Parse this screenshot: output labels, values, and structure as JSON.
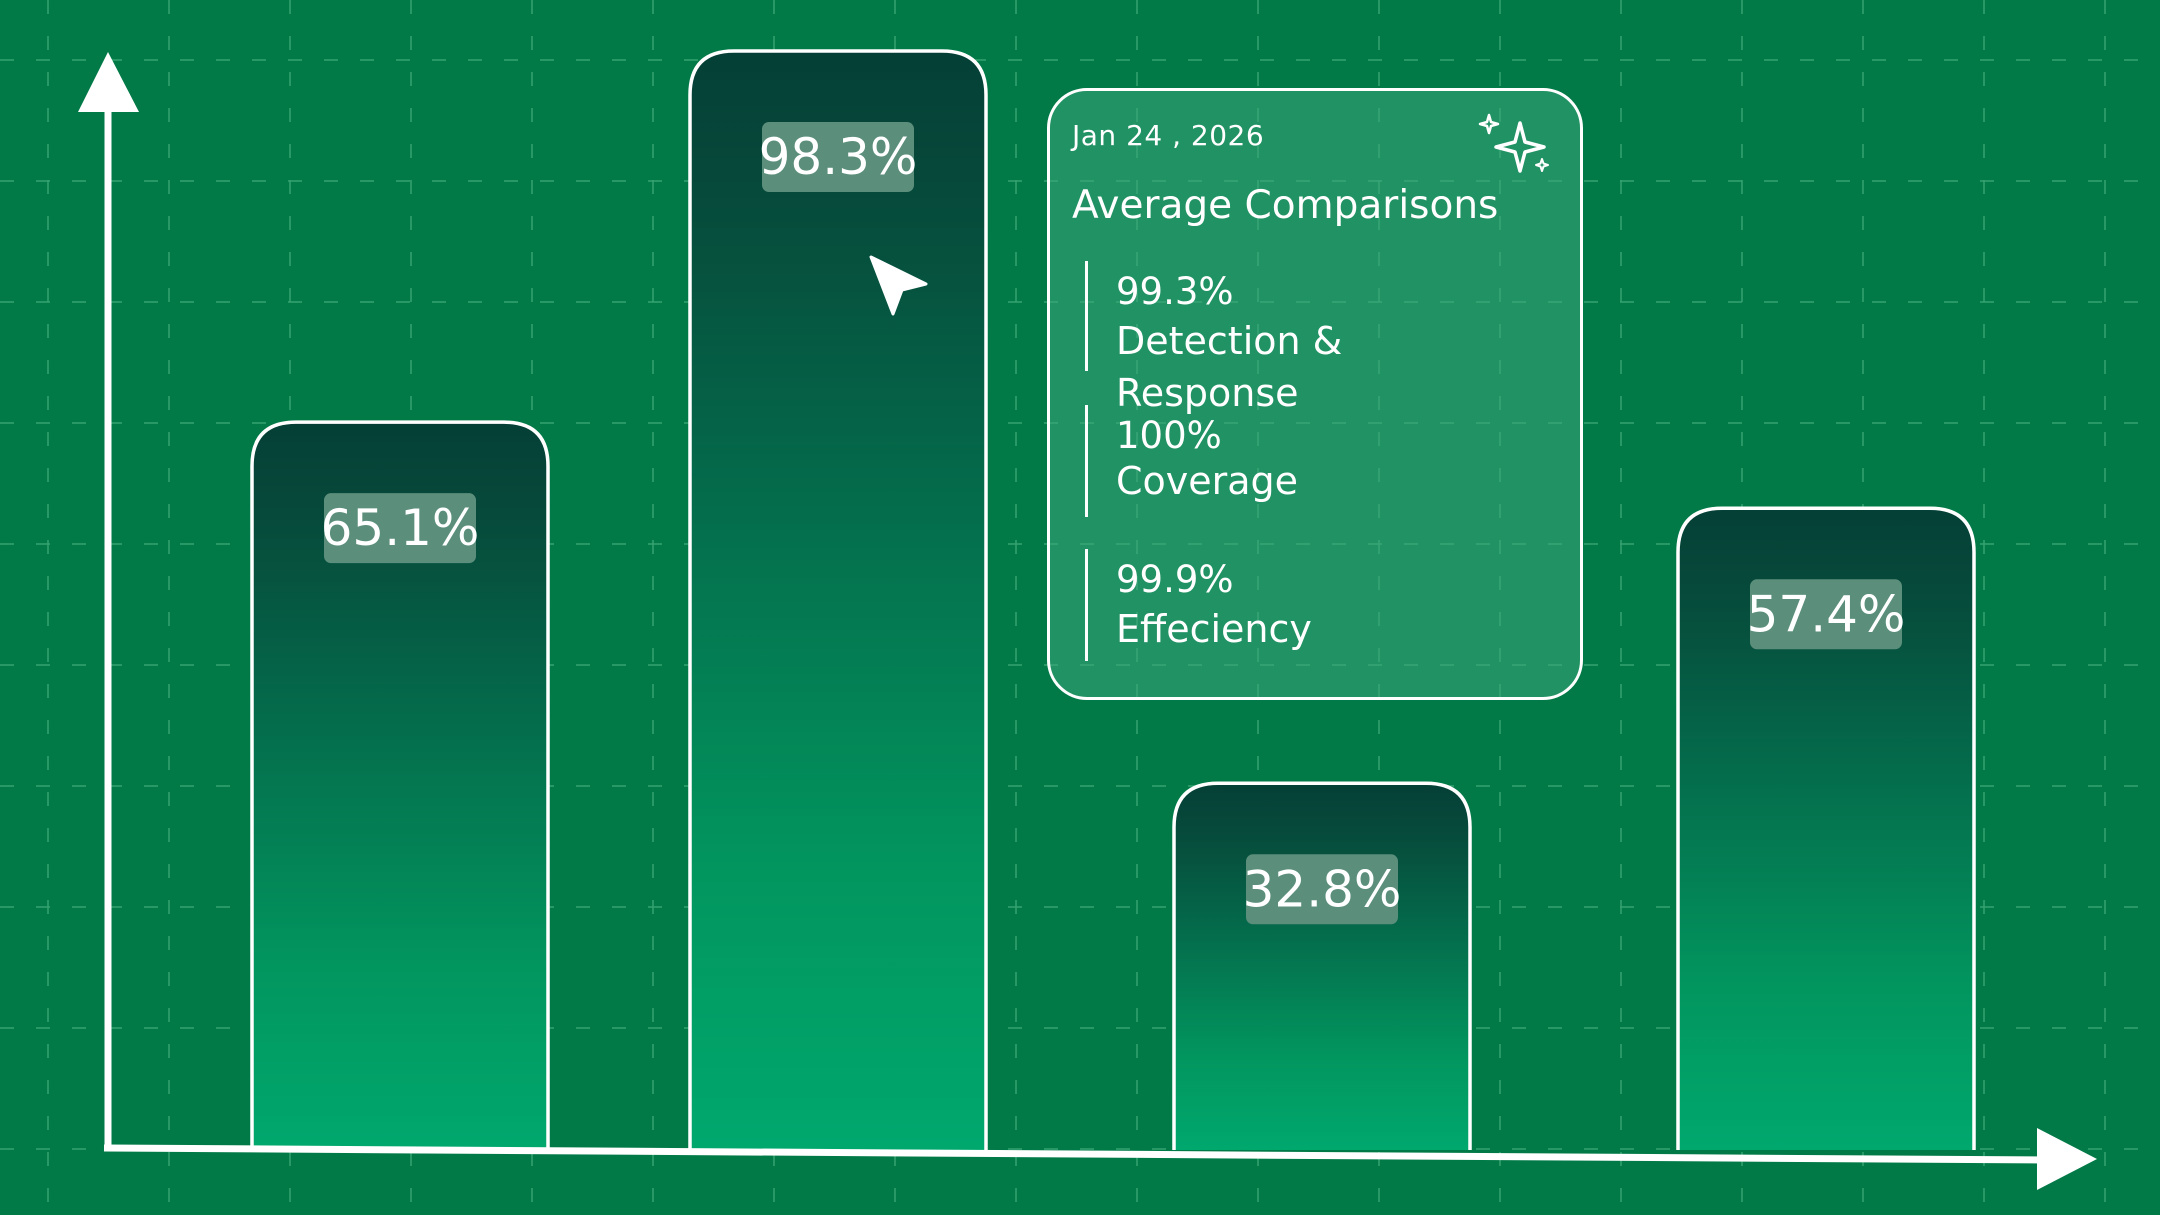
{
  "colors": {
    "background": "#027a47",
    "grid": "#34a271",
    "bar_top": "#053f36",
    "bar_bottom": "#00a66d",
    "stroke": "#ffffff",
    "label_bg": "#5b8e7b"
  },
  "chart_data": {
    "type": "bar",
    "categories": [],
    "values": [
      65.1,
      98.3,
      32.8,
      57.4
    ],
    "labels": [
      "65.1%",
      "98.3%",
      "32.8%",
      "57.4%"
    ],
    "ylim": [
      0,
      100
    ],
    "grid": true
  },
  "tooltip": {
    "date": "Jan 24 , 2026",
    "title": "Average Comparisons",
    "icon": "sparkle-icon",
    "items": [
      {
        "value": "99.3%",
        "label": "Detection & Response"
      },
      {
        "value": "100%",
        "label": "Coverage"
      },
      {
        "value": "99.9%",
        "label": "Effeciency"
      }
    ]
  },
  "cursor_icon": "pointer-cursor-icon"
}
